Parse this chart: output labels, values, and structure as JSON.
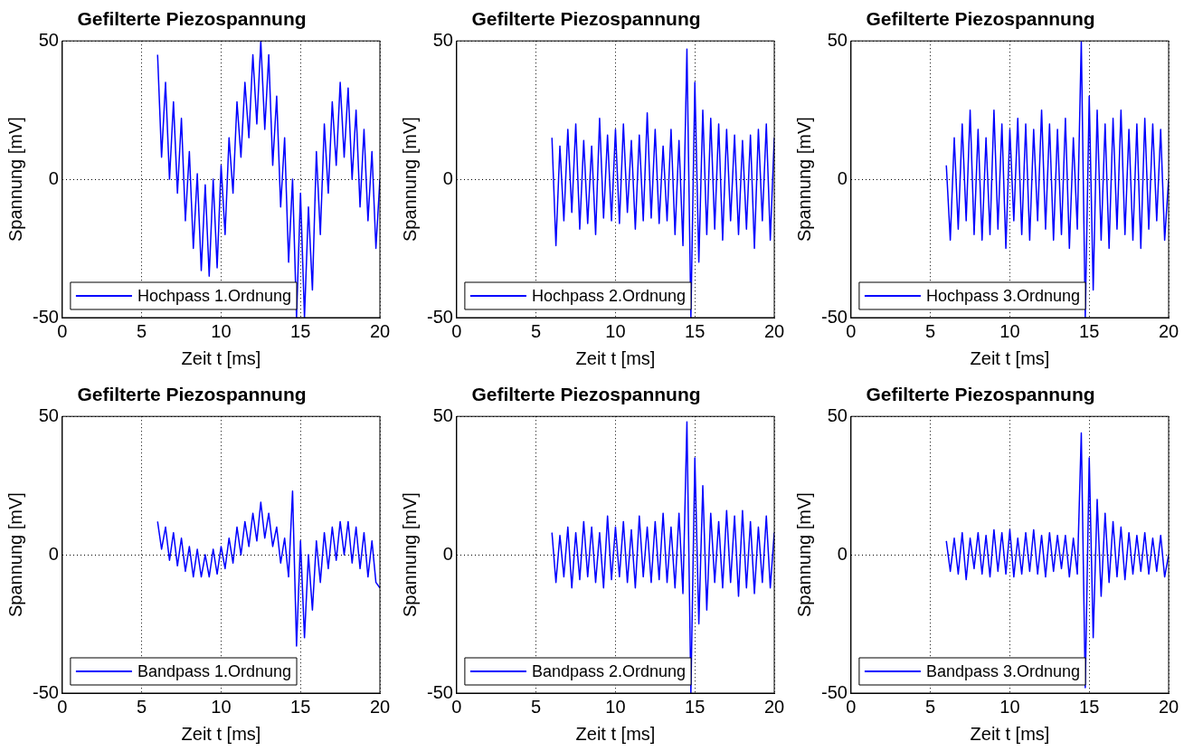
{
  "chart_data": [
    {
      "type": "line",
      "title": "Gefilterte Piezospannung",
      "xlabel": "Zeit t [ms]",
      "ylabel": "Spannung [mV]",
      "xlim": [
        0,
        20
      ],
      "xticks": [
        0,
        5,
        10,
        15,
        20
      ],
      "ylim": [
        -50,
        50
      ],
      "yticks": [
        -50,
        0,
        50
      ],
      "grid": true,
      "legend": "bottom left",
      "x": [
        6,
        6.25,
        6.5,
        6.75,
        7,
        7.25,
        7.5,
        7.75,
        8,
        8.25,
        8.5,
        8.75,
        9,
        9.25,
        9.5,
        9.75,
        10,
        10.25,
        10.5,
        10.75,
        11,
        11.25,
        11.5,
        11.75,
        12,
        12.25,
        12.5,
        12.75,
        13,
        13.25,
        13.5,
        13.75,
        14,
        14.25,
        14.5,
        14.75,
        15,
        15.25,
        15.5,
        15.75,
        16,
        16.25,
        16.5,
        16.75,
        17,
        17.25,
        17.5,
        17.75,
        18,
        18.25,
        18.5,
        18.75,
        19,
        19.25,
        19.5,
        19.75,
        20
      ],
      "series": [
        {
          "name": "Hochpass 1.Ordnung",
          "color": "#0000ff",
          "values": [
            45,
            8,
            35,
            0,
            28,
            -5,
            22,
            -15,
            10,
            -25,
            2,
            -33,
            -2,
            -35,
            0,
            -32,
            5,
            -20,
            15,
            -5,
            28,
            8,
            35,
            15,
            45,
            20,
            50,
            18,
            45,
            5,
            30,
            -10,
            15,
            -30,
            0,
            -50,
            -5,
            -50,
            -10,
            -40,
            10,
            -20,
            20,
            -5,
            28,
            5,
            35,
            8,
            33,
            0,
            25,
            -10,
            18,
            -15,
            10,
            -25,
            0
          ]
        }
      ]
    },
    {
      "type": "line",
      "title": "Gefilterte Piezospannung",
      "xlabel": "Zeit t [ms]",
      "ylabel": "Spannung [mV]",
      "xlim": [
        0,
        20
      ],
      "xticks": [
        0,
        5,
        10,
        15,
        20
      ],
      "ylim": [
        -50,
        50
      ],
      "yticks": [
        -50,
        0,
        50
      ],
      "grid": true,
      "legend": "bottom left",
      "x": [
        6,
        6.25,
        6.5,
        6.75,
        7,
        7.25,
        7.5,
        7.75,
        8,
        8.25,
        8.5,
        8.75,
        9,
        9.25,
        9.5,
        9.75,
        10,
        10.25,
        10.5,
        10.75,
        11,
        11.25,
        11.5,
        11.75,
        12,
        12.25,
        12.5,
        12.75,
        13,
        13.25,
        13.5,
        13.75,
        14,
        14.25,
        14.5,
        14.75,
        15,
        15.25,
        15.5,
        15.75,
        16,
        16.25,
        16.5,
        16.75,
        17,
        17.25,
        17.5,
        17.75,
        18,
        18.25,
        18.5,
        18.75,
        19,
        19.25,
        19.5,
        19.75,
        20
      ],
      "series": [
        {
          "name": "Hochpass 2.Ordnung",
          "color": "#0000ff",
          "values": [
            15,
            -24,
            12,
            -15,
            18,
            -12,
            20,
            -18,
            14,
            -16,
            12,
            -20,
            22,
            -14,
            16,
            -15,
            18,
            -16,
            20,
            -12,
            14,
            -18,
            16,
            -15,
            24,
            -14,
            18,
            -16,
            12,
            -15,
            18,
            -20,
            14,
            -24,
            47,
            -50,
            35,
            -30,
            25,
            -20,
            22,
            -18,
            20,
            -22,
            18,
            -15,
            16,
            -20,
            14,
            -18,
            16,
            -25,
            18,
            -15,
            20,
            -22,
            15
          ]
        }
      ]
    },
    {
      "type": "line",
      "title": "Gefilterte Piezospannung",
      "xlabel": "Zeit t [ms]",
      "ylabel": "Spannung [mV]",
      "xlim": [
        0,
        20
      ],
      "xticks": [
        0,
        5,
        10,
        15,
        20
      ],
      "ylim": [
        -50,
        50
      ],
      "yticks": [
        -50,
        0,
        50
      ],
      "grid": true,
      "legend": "bottom left",
      "x": [
        6,
        6.25,
        6.5,
        6.75,
        7,
        7.25,
        7.5,
        7.75,
        8,
        8.25,
        8.5,
        8.75,
        9,
        9.25,
        9.5,
        9.75,
        10,
        10.25,
        10.5,
        10.75,
        11,
        11.25,
        11.5,
        11.75,
        12,
        12.25,
        12.5,
        12.75,
        13,
        13.25,
        13.5,
        13.75,
        14,
        14.25,
        14.5,
        14.75,
        15,
        15.25,
        15.5,
        15.75,
        16,
        16.25,
        16.5,
        16.75,
        17,
        17.25,
        17.5,
        17.75,
        18,
        18.25,
        18.5,
        18.75,
        19,
        19.25,
        19.5,
        19.75,
        20
      ],
      "series": [
        {
          "name": "Hochpass 3.Ordnung",
          "color": "#0000ff",
          "values": [
            5,
            -22,
            15,
            -18,
            20,
            -15,
            25,
            -20,
            18,
            -22,
            15,
            -20,
            25,
            -18,
            20,
            -25,
            18,
            -15,
            22,
            -20,
            20,
            -22,
            18,
            -15,
            25,
            -18,
            20,
            -22,
            18,
            -20,
            22,
            -25,
            15,
            -18,
            50,
            -50,
            30,
            -40,
            25,
            -22,
            20,
            -25,
            22,
            -18,
            25,
            -20,
            18,
            -22,
            20,
            -25,
            22,
            -18,
            20,
            -15,
            18,
            -22,
            0
          ]
        }
      ]
    },
    {
      "type": "line",
      "title": "Gefilterte Piezospannung",
      "xlabel": "Zeit t [ms]",
      "ylabel": "Spannung [mV]",
      "xlim": [
        0,
        20
      ],
      "xticks": [
        0,
        5,
        10,
        15,
        20
      ],
      "ylim": [
        -50,
        50
      ],
      "yticks": [
        -50,
        0,
        50
      ],
      "grid": true,
      "legend": "bottom left",
      "x": [
        6,
        6.25,
        6.5,
        6.75,
        7,
        7.25,
        7.5,
        7.75,
        8,
        8.25,
        8.5,
        8.75,
        9,
        9.25,
        9.5,
        9.75,
        10,
        10.25,
        10.5,
        10.75,
        11,
        11.25,
        11.5,
        11.75,
        12,
        12.25,
        12.5,
        12.75,
        13,
        13.25,
        13.5,
        13.75,
        14,
        14.25,
        14.5,
        14.75,
        15,
        15.25,
        15.5,
        15.75,
        16,
        16.25,
        16.5,
        16.75,
        17,
        17.25,
        17.5,
        17.75,
        18,
        18.25,
        18.5,
        18.75,
        19,
        19.25,
        19.5,
        19.75,
        20
      ],
      "series": [
        {
          "name": "Bandpass 1.Ordnung",
          "color": "#0000ff",
          "values": [
            12,
            2,
            10,
            -2,
            8,
            -4,
            6,
            -6,
            3,
            -8,
            2,
            -8,
            0,
            -8,
            2,
            -7,
            3,
            -5,
            6,
            -3,
            10,
            0,
            12,
            3,
            15,
            5,
            19,
            6,
            15,
            3,
            10,
            -3,
            6,
            -8,
            23,
            -33,
            5,
            -30,
            0,
            -20,
            5,
            -10,
            8,
            -5,
            10,
            -2,
            12,
            0,
            12,
            -3,
            10,
            -5,
            8,
            -8,
            5,
            -10,
            -12
          ]
        }
      ]
    },
    {
      "type": "line",
      "title": "Gefilterte Piezospannung",
      "xlabel": "Zeit t [ms]",
      "ylabel": "Spannung [mV]",
      "xlim": [
        0,
        20
      ],
      "xticks": [
        0,
        5,
        10,
        15,
        20
      ],
      "ylim": [
        -50,
        50
      ],
      "yticks": [
        -50,
        0,
        50
      ],
      "grid": true,
      "legend": "bottom left",
      "x": [
        6,
        6.25,
        6.5,
        6.75,
        7,
        7.25,
        7.5,
        7.75,
        8,
        8.25,
        8.5,
        8.75,
        9,
        9.25,
        9.5,
        9.75,
        10,
        10.25,
        10.5,
        10.75,
        11,
        11.25,
        11.5,
        11.75,
        12,
        12.25,
        12.5,
        12.75,
        13,
        13.25,
        13.5,
        13.75,
        14,
        14.25,
        14.5,
        14.75,
        15,
        15.25,
        15.5,
        15.75,
        16,
        16.25,
        16.5,
        16.75,
        17,
        17.25,
        17.5,
        17.75,
        18,
        18.25,
        18.5,
        18.75,
        19,
        19.25,
        19.5,
        19.75,
        20
      ],
      "series": [
        {
          "name": "Bandpass 2.Ordnung",
          "color": "#0000ff",
          "values": [
            8,
            -10,
            7,
            -8,
            10,
            -12,
            8,
            -9,
            12,
            -8,
            10,
            -10,
            8,
            -12,
            14,
            -9,
            10,
            -8,
            12,
            -10,
            9,
            -12,
            14,
            -8,
            10,
            -10,
            12,
            -9,
            15,
            -10,
            10,
            -12,
            15,
            -14,
            48,
            -50,
            35,
            -25,
            25,
            -20,
            15,
            -10,
            12,
            -12,
            16,
            -10,
            14,
            -15,
            16,
            -12,
            12,
            -14,
            10,
            -10,
            14,
            -12,
            8
          ]
        }
      ]
    },
    {
      "type": "line",
      "title": "Gefilterte Piezospannung",
      "xlabel": "Zeit t [ms]",
      "ylabel": "Spannung [mV]",
      "xlim": [
        0,
        20
      ],
      "xticks": [
        0,
        5,
        10,
        15,
        20
      ],
      "ylim": [
        -50,
        50
      ],
      "yticks": [
        -50,
        0,
        50
      ],
      "grid": true,
      "legend": "bottom left",
      "x": [
        6,
        6.25,
        6.5,
        6.75,
        7,
        7.25,
        7.5,
        7.75,
        8,
        8.25,
        8.5,
        8.75,
        9,
        9.25,
        9.5,
        9.75,
        10,
        10.25,
        10.5,
        10.75,
        11,
        11.25,
        11.5,
        11.75,
        12,
        12.25,
        12.5,
        12.75,
        13,
        13.25,
        13.5,
        13.75,
        14,
        14.25,
        14.5,
        14.75,
        15,
        15.25,
        15.5,
        15.75,
        16,
        16.25,
        16.5,
        16.75,
        17,
        17.25,
        17.5,
        17.75,
        18,
        18.25,
        18.5,
        18.75,
        19,
        19.25,
        19.5,
        19.75,
        20
      ],
      "series": [
        {
          "name": "Bandpass 3.Ordnung",
          "color": "#0000ff",
          "values": [
            5,
            -6,
            6,
            -7,
            8,
            -9,
            6,
            -5,
            8,
            -7,
            7,
            -8,
            9,
            -6,
            8,
            -7,
            9,
            -8,
            6,
            -7,
            8,
            -6,
            9,
            -7,
            7,
            -8,
            8,
            -6,
            7,
            -5,
            7,
            -8,
            6,
            -7,
            44,
            -48,
            35,
            -30,
            20,
            -15,
            15,
            -10,
            12,
            -8,
            10,
            -9,
            8,
            -7,
            7,
            -6,
            8,
            -7,
            6,
            -6,
            7,
            -8,
            0
          ]
        }
      ]
    }
  ]
}
